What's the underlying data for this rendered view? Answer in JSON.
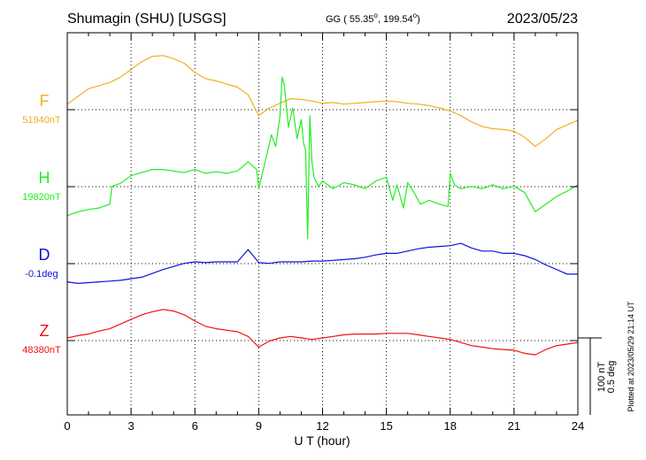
{
  "header": {
    "station": "Shumagin (SHU)  [USGS]",
    "coords_prefix": "GG ( 55.35",
    "coords_sep": ", 199.54",
    "coords_suffix": ")",
    "date": "2023/05/23"
  },
  "footer": {
    "plotted": "Plotted at 2023/05/29 21:14 UT"
  },
  "chart_data": {
    "type": "line",
    "xlabel": "U T (hour)",
    "xlim": [
      0,
      24
    ],
    "x_ticks": [
      "0",
      "3",
      "6",
      "9",
      "12",
      "15",
      "18",
      "21",
      "24"
    ],
    "scale_bar": {
      "label1": "100 nT",
      "label2": "0.5 deg"
    },
    "grid": true,
    "series": [
      {
        "name": "F",
        "baseline_label": "51940nT",
        "color": "#f0b020",
        "unit": "nT",
        "baseline": 51940,
        "x": [
          0,
          0.5,
          1,
          1.5,
          2,
          2.5,
          3,
          3.5,
          4,
          4.5,
          5,
          5.5,
          6,
          6.5,
          7,
          7.5,
          8,
          8.5,
          9,
          9.5,
          10,
          10.5,
          11,
          11.5,
          12,
          12.5,
          13,
          13.5,
          14,
          14.5,
          15,
          15.5,
          16,
          16.5,
          17,
          17.5,
          18,
          18.5,
          19,
          19.5,
          20,
          20.5,
          21,
          21.5,
          22,
          22.5,
          23,
          23.5,
          24
        ],
        "values": [
          5,
          15,
          25,
          29,
          33,
          40,
          50,
          60,
          67,
          68,
          64,
          58,
          46,
          38,
          35,
          31,
          27,
          17,
          -10,
          0,
          6,
          12,
          11,
          9,
          6,
          7,
          5,
          6,
          7,
          8,
          9,
          8,
          6,
          5,
          3,
          0,
          -4,
          -10,
          -18,
          -24,
          -27,
          -28,
          -30,
          -38,
          -50,
          -40,
          -28,
          -22,
          -16
        ]
      },
      {
        "name": "H",
        "baseline_label": "19820nT",
        "color": "#22ee22",
        "unit": "nT",
        "baseline": 19820,
        "x": [
          0,
          0.5,
          1,
          1.5,
          2,
          2.1,
          2.5,
          3,
          3.5,
          4,
          4.5,
          5,
          5.5,
          6,
          6.5,
          7,
          7.5,
          8,
          8.5,
          8.9,
          9,
          9.3,
          9.6,
          9.8,
          10,
          10.1,
          10.2,
          10.4,
          10.6,
          10.8,
          11,
          11.1,
          11.2,
          11.3,
          11.4,
          11.5,
          11.6,
          11.8,
          12,
          12.5,
          13,
          13.5,
          14,
          14.5,
          15,
          15.3,
          15.5,
          15.8,
          16,
          16.3,
          16.6,
          17,
          17.5,
          17.9,
          18,
          18.2,
          18.5,
          19,
          19.5,
          20,
          20.5,
          21,
          21.5,
          22,
          22.5,
          23,
          23.5,
          24
        ],
        "values": [
          -40,
          -35,
          -32,
          -30,
          -25,
          -2,
          2,
          12,
          16,
          20,
          20,
          18,
          16,
          20,
          15,
          17,
          15,
          18,
          30,
          20,
          -5,
          30,
          65,
          50,
          90,
          140,
          130,
          75,
          100,
          60,
          85,
          55,
          45,
          -70,
          90,
          30,
          10,
          -2,
          5,
          -5,
          3,
          0,
          -5,
          5,
          10,
          -20,
          0,
          -30,
          3,
          -10,
          -25,
          -20,
          -25,
          -28,
          15,
          0,
          -5,
          -2,
          -5,
          0,
          -5,
          -2,
          -10,
          -35,
          -25,
          -15,
          -8,
          0
        ]
      },
      {
        "name": "D",
        "baseline_label": "-0.1deg",
        "color": "#1010dd",
        "unit": "deg",
        "baseline": -0.1,
        "x": [
          0,
          0.5,
          1,
          1.5,
          2,
          2.5,
          3,
          3.5,
          4,
          4.5,
          5,
          5.5,
          6,
          6.5,
          7,
          7.5,
          8,
          8.5,
          9,
          9.5,
          10,
          10.5,
          11,
          11.5,
          12,
          12.5,
          13,
          13.5,
          14,
          14.5,
          15,
          15.5,
          16,
          16.5,
          17,
          17.5,
          18,
          18.5,
          19,
          19.5,
          20,
          20.5,
          21,
          21.5,
          22,
          22.5,
          23,
          23.5,
          24
        ],
        "values": [
          -0.13,
          -0.14,
          -0.135,
          -0.13,
          -0.125,
          -0.12,
          -0.11,
          -0.1,
          -0.075,
          -0.05,
          -0.03,
          -0.01,
          0.0,
          -0.005,
          0.0,
          0.0,
          0.0,
          0.08,
          -0.005,
          -0.01,
          0.0,
          0.0,
          0.0,
          0.005,
          0.005,
          0.01,
          0.015,
          0.02,
          0.03,
          0.045,
          0.055,
          0.055,
          0.07,
          0.085,
          0.095,
          0.1,
          0.105,
          0.12,
          0.09,
          0.07,
          0.07,
          0.055,
          0.055,
          0.04,
          0.015,
          -0.02,
          -0.05,
          -0.08,
          -0.08
        ]
      },
      {
        "name": "Z",
        "baseline_label": "48380nT",
        "color": "#ee1111",
        "unit": "nT",
        "baseline": 48380,
        "x": [
          0,
          0.5,
          1,
          1.5,
          2,
          2.5,
          3,
          3.5,
          4,
          4.5,
          5,
          5.5,
          6,
          6.5,
          7,
          7.5,
          8,
          8.5,
          9,
          9.5,
          10,
          10.5,
          11,
          11.5,
          12,
          12.5,
          13,
          13.5,
          14,
          14.5,
          15,
          15.5,
          16,
          16.5,
          17,
          17.5,
          18,
          18.5,
          19,
          19.5,
          20,
          20.5,
          21,
          21.5,
          22,
          22.5,
          23,
          23.5,
          24
        ],
        "values": [
          0,
          3,
          5,
          9,
          12,
          18,
          24,
          30,
          34,
          37,
          35,
          30,
          22,
          15,
          12,
          10,
          8,
          2,
          -12,
          -4,
          0,
          2,
          0,
          -2,
          0,
          2,
          4,
          5,
          5,
          5,
          6,
          6,
          6,
          4,
          2,
          0,
          -2,
          -6,
          -10,
          -12,
          -14,
          -15,
          -16,
          -20,
          -22,
          -15,
          -10,
          -8,
          -6
        ]
      }
    ]
  }
}
